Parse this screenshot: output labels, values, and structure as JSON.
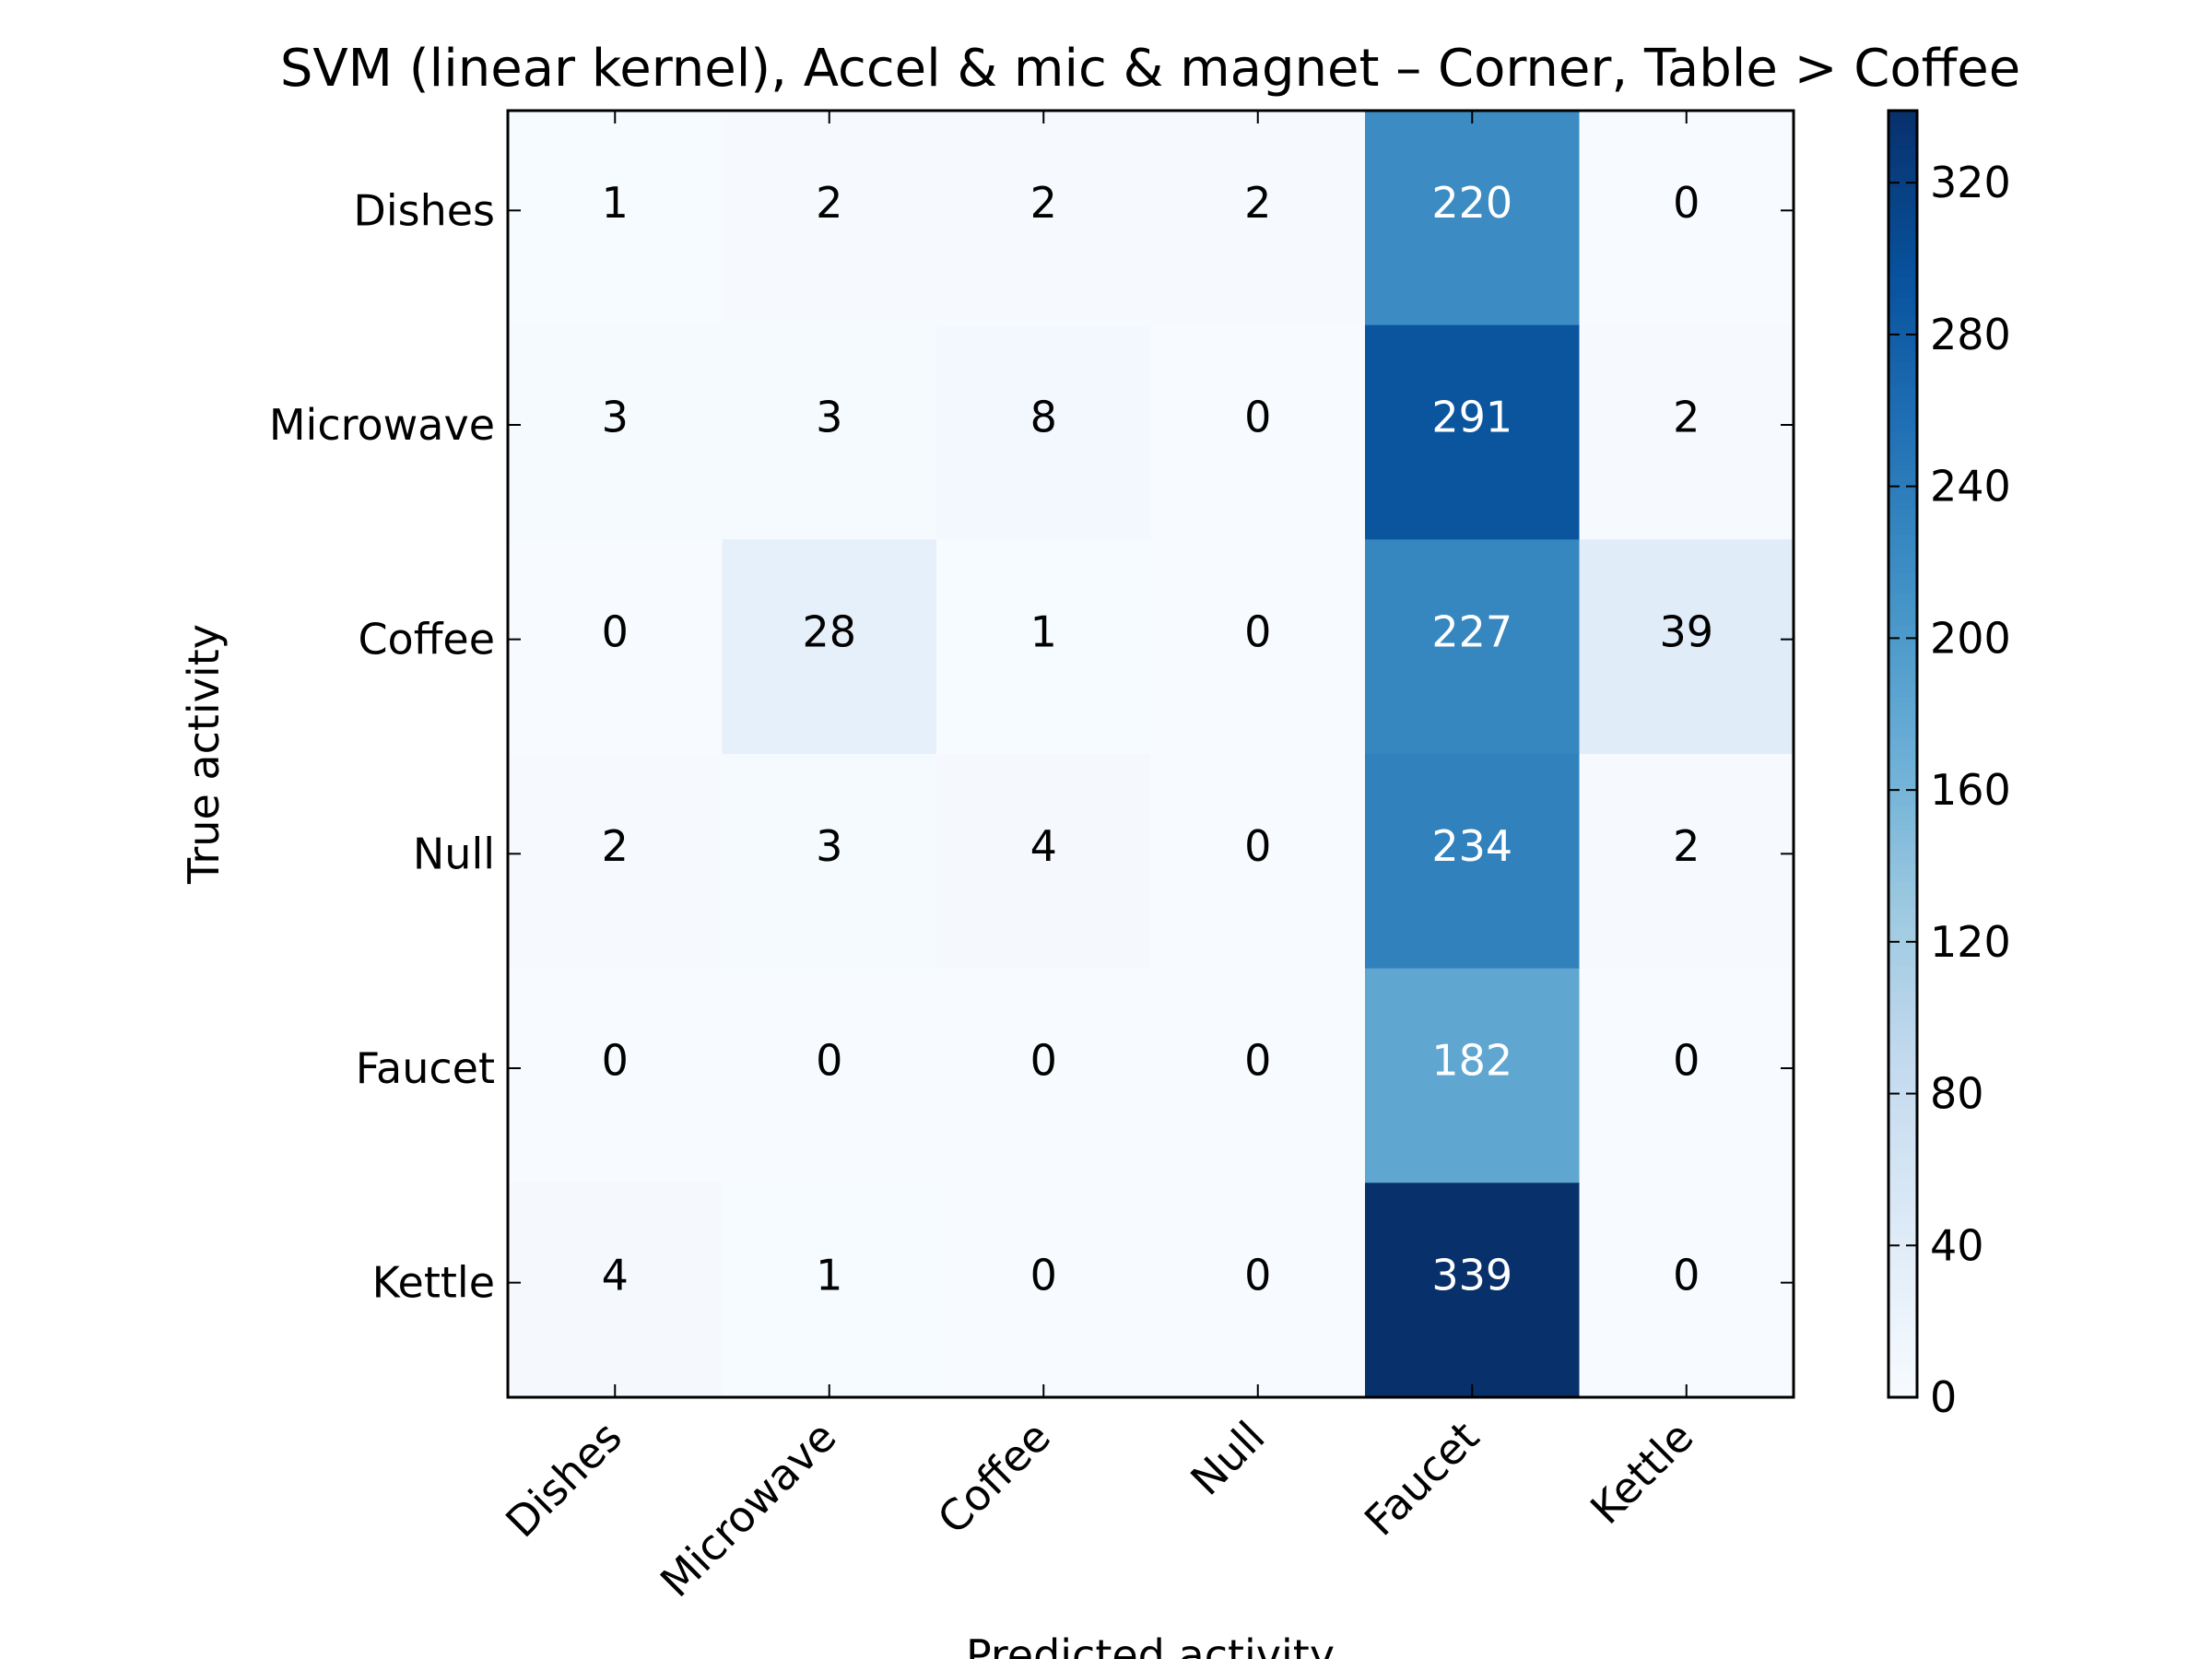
{
  "chart_data": {
    "type": "heatmap",
    "title": "SVM (linear kernel), Accel & mic & magnet – Corner, Table > Coffee",
    "xlabel": "Predicted activity",
    "ylabel": "True activity",
    "x_categories": [
      "Dishes",
      "Microwave",
      "Coffee",
      "Null",
      "Faucet",
      "Kettle"
    ],
    "y_categories": [
      "Dishes",
      "Microwave",
      "Coffee",
      "Null",
      "Faucet",
      "Kettle"
    ],
    "values": [
      [
        1,
        2,
        2,
        2,
        220,
        0
      ],
      [
        3,
        3,
        8,
        0,
        291,
        2
      ],
      [
        0,
        28,
        1,
        0,
        227,
        39
      ],
      [
        2,
        3,
        4,
        0,
        234,
        2
      ],
      [
        0,
        0,
        0,
        0,
        182,
        0
      ],
      [
        4,
        1,
        0,
        0,
        339,
        0
      ]
    ],
    "colormap": "Blues",
    "colorbar": {
      "vmin": 0,
      "vmax": 339,
      "ticks": [
        0,
        40,
        80,
        120,
        160,
        200,
        240,
        280,
        320
      ]
    },
    "grid": false
  }
}
